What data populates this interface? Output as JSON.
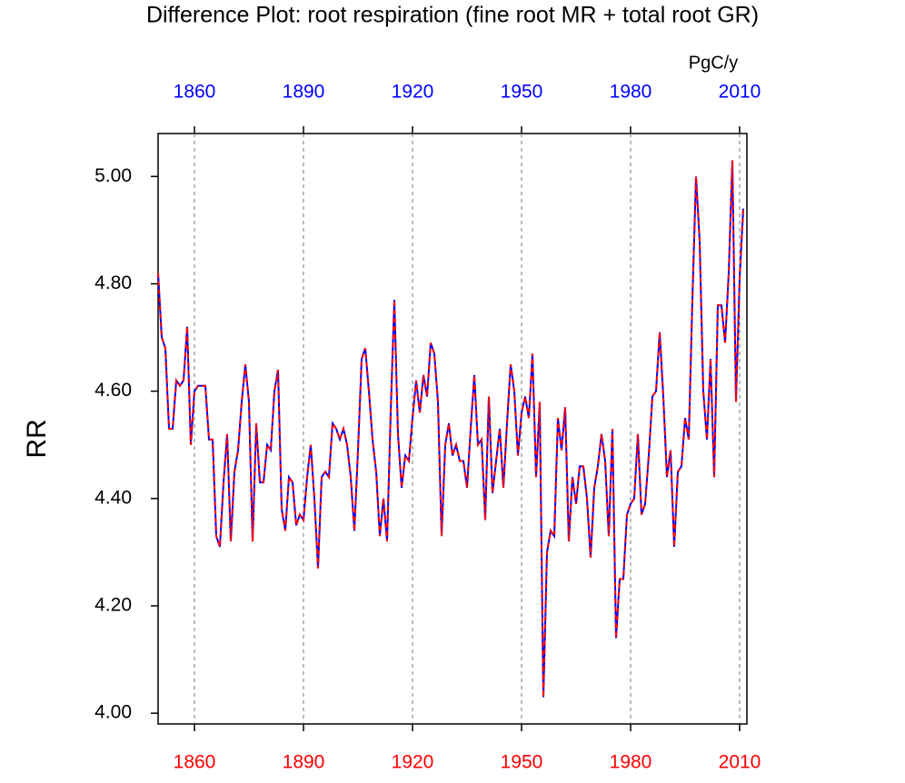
{
  "chart_data": {
    "type": "line",
    "title": "Difference Plot: root respiration (fine root MR + total root GR)",
    "units": "PgC/y",
    "y_label": "RR",
    "x": [
      1850,
      1851,
      1852,
      1853,
      1854,
      1855,
      1856,
      1857,
      1858,
      1859,
      1860,
      1861,
      1862,
      1863,
      1864,
      1865,
      1866,
      1867,
      1868,
      1869,
      1870,
      1871,
      1872,
      1873,
      1874,
      1875,
      1876,
      1877,
      1878,
      1879,
      1880,
      1881,
      1882,
      1883,
      1884,
      1885,
      1886,
      1887,
      1888,
      1889,
      1890,
      1891,
      1892,
      1893,
      1894,
      1895,
      1896,
      1897,
      1898,
      1899,
      1900,
      1901,
      1902,
      1903,
      1904,
      1905,
      1906,
      1907,
      1908,
      1909,
      1910,
      1911,
      1912,
      1913,
      1914,
      1915,
      1916,
      1917,
      1918,
      1919,
      1920,
      1921,
      1922,
      1923,
      1924,
      1925,
      1926,
      1927,
      1928,
      1929,
      1930,
      1931,
      1932,
      1933,
      1934,
      1935,
      1936,
      1937,
      1938,
      1939,
      1940,
      1941,
      1942,
      1943,
      1944,
      1945,
      1946,
      1947,
      1948,
      1949,
      1950,
      1951,
      1952,
      1953,
      1954,
      1955,
      1956,
      1957,
      1958,
      1959,
      1960,
      1961,
      1962,
      1963,
      1964,
      1965,
      1966,
      1967,
      1968,
      1969,
      1970,
      1971,
      1972,
      1973,
      1974,
      1975,
      1976,
      1977,
      1978,
      1979,
      1980,
      1981,
      1982,
      1983,
      1984,
      1985,
      1986,
      1987,
      1988,
      1989,
      1990,
      1991,
      1992,
      1993,
      1994,
      1995,
      1996,
      1997,
      1998,
      1999,
      2000,
      2001,
      2002,
      2003,
      2004,
      2005,
      2006,
      2007,
      2008,
      2009,
      2010,
      2011
    ],
    "series": [
      {
        "color": "#0000ff",
        "line_style": "solid",
        "values": [
          4.82,
          4.7,
          4.68,
          4.53,
          4.53,
          4.62,
          4.61,
          4.62,
          4.72,
          4.5,
          4.6,
          4.61,
          4.61,
          4.61,
          4.51,
          4.51,
          4.33,
          4.31,
          4.43,
          4.52,
          4.32,
          4.45,
          4.49,
          4.58,
          4.65,
          4.58,
          4.32,
          4.54,
          4.43,
          4.43,
          4.5,
          4.49,
          4.6,
          4.64,
          4.38,
          4.34,
          4.44,
          4.43,
          4.35,
          4.37,
          4.36,
          4.44,
          4.5,
          4.4,
          4.27,
          4.44,
          4.45,
          4.44,
          4.54,
          4.53,
          4.51,
          4.53,
          4.5,
          4.44,
          4.34,
          4.49,
          4.66,
          4.68,
          4.6,
          4.51,
          4.45,
          4.33,
          4.4,
          4.32,
          4.56,
          4.77,
          4.52,
          4.42,
          4.48,
          4.47,
          4.55,
          4.62,
          4.56,
          4.63,
          4.59,
          4.69,
          4.67,
          4.58,
          4.33,
          4.5,
          4.54,
          4.48,
          4.5,
          4.47,
          4.47,
          4.42,
          4.53,
          4.63,
          4.5,
          4.51,
          4.36,
          4.59,
          4.41,
          4.47,
          4.53,
          4.42,
          4.54,
          4.65,
          4.6,
          4.48,
          4.56,
          4.59,
          4.55,
          4.67,
          4.44,
          4.58,
          4.03,
          4.3,
          4.34,
          4.33,
          4.55,
          4.49,
          4.57,
          4.32,
          4.44,
          4.39,
          4.46,
          4.46,
          4.4,
          4.29,
          4.42,
          4.46,
          4.52,
          4.47,
          4.33,
          4.53,
          4.14,
          4.25,
          4.25,
          4.37,
          4.39,
          4.4,
          4.52,
          4.37,
          4.39,
          4.48,
          4.59,
          4.6,
          4.71,
          4.59,
          4.44,
          4.49,
          4.31,
          4.45,
          4.46,
          4.55,
          4.51,
          4.77,
          5.0,
          4.88,
          4.6,
          4.51,
          4.66,
          4.44,
          4.76,
          4.76,
          4.69,
          4.82,
          5.03,
          4.58,
          4.81,
          4.94
        ]
      },
      {
        "color": "#ff0000",
        "line_style": "dashed",
        "values": [
          4.82,
          4.7,
          4.68,
          4.53,
          4.53,
          4.62,
          4.61,
          4.62,
          4.72,
          4.5,
          4.6,
          4.61,
          4.61,
          4.61,
          4.51,
          4.51,
          4.33,
          4.31,
          4.43,
          4.52,
          4.32,
          4.45,
          4.49,
          4.58,
          4.65,
          4.58,
          4.32,
          4.54,
          4.43,
          4.43,
          4.5,
          4.49,
          4.6,
          4.64,
          4.38,
          4.34,
          4.44,
          4.43,
          4.35,
          4.37,
          4.36,
          4.44,
          4.5,
          4.4,
          4.27,
          4.44,
          4.45,
          4.44,
          4.54,
          4.53,
          4.51,
          4.53,
          4.5,
          4.44,
          4.34,
          4.49,
          4.66,
          4.68,
          4.6,
          4.51,
          4.45,
          4.33,
          4.4,
          4.32,
          4.56,
          4.77,
          4.52,
          4.42,
          4.48,
          4.47,
          4.55,
          4.62,
          4.56,
          4.63,
          4.59,
          4.69,
          4.67,
          4.58,
          4.33,
          4.5,
          4.54,
          4.48,
          4.5,
          4.47,
          4.47,
          4.42,
          4.53,
          4.63,
          4.5,
          4.51,
          4.36,
          4.59,
          4.41,
          4.47,
          4.53,
          4.42,
          4.54,
          4.65,
          4.6,
          4.48,
          4.56,
          4.59,
          4.55,
          4.67,
          4.44,
          4.58,
          4.03,
          4.3,
          4.34,
          4.33,
          4.55,
          4.49,
          4.57,
          4.32,
          4.44,
          4.39,
          4.46,
          4.46,
          4.4,
          4.29,
          4.42,
          4.46,
          4.52,
          4.47,
          4.33,
          4.53,
          4.14,
          4.25,
          4.25,
          4.37,
          4.39,
          4.4,
          4.52,
          4.37,
          4.39,
          4.48,
          4.59,
          4.6,
          4.71,
          4.59,
          4.44,
          4.49,
          4.31,
          4.45,
          4.46,
          4.55,
          4.51,
          4.77,
          5.0,
          4.88,
          4.6,
          4.51,
          4.66,
          4.44,
          4.76,
          4.76,
          4.69,
          4.82,
          5.03,
          4.58,
          4.81,
          4.94
        ]
      }
    ],
    "xlim": [
      1850,
      2012
    ],
    "xticks": [
      1860,
      1890,
      1920,
      1950,
      1980,
      2010
    ],
    "bottom_xtick_color": "#ff0000",
    "top_xtick_color": "#0000ff",
    "ylim": [
      3.98,
      5.08
    ],
    "yticks": [
      {
        "value": 4.0,
        "label": "4.00"
      },
      {
        "value": 4.2,
        "label": "4.20"
      },
      {
        "value": 4.4,
        "label": "4.40"
      },
      {
        "value": 4.6,
        "label": "4.60"
      },
      {
        "value": 4.8,
        "label": "4.80"
      },
      {
        "value": 5.0,
        "label": "5.00"
      }
    ],
    "x_grid": true
  }
}
